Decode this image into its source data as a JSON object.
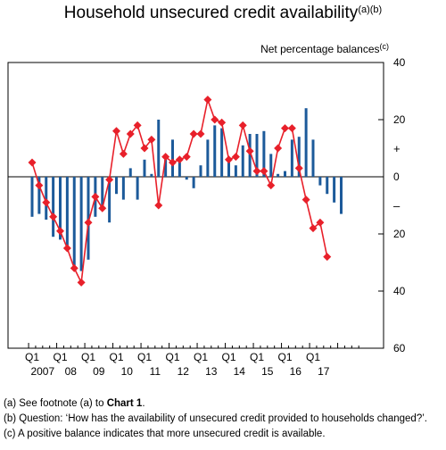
{
  "chart_data": {
    "type": "bar+line",
    "title": "Household unsecured credit availability",
    "title_note": "(a)(b)",
    "ylabel": "Net percentage balances",
    "ylabel_note": "(c)",
    "ylim": [
      -60,
      40
    ],
    "yticks": [
      {
        "value": 40,
        "label": "40"
      },
      {
        "value": 20,
        "label": "20"
      },
      {
        "value": 0,
        "label": "0"
      },
      {
        "value": -20,
        "label": "20"
      },
      {
        "value": -40,
        "label": "40"
      },
      {
        "value": -60,
        "label": "60"
      }
    ],
    "sign_labels": {
      "plus": "+",
      "minus": "–"
    },
    "quarters_start": "2007 Q1",
    "year_labels": [
      "2007",
      "08",
      "09",
      "10",
      "11",
      "12",
      "13",
      "14",
      "15",
      "16",
      "17"
    ],
    "q1_label": "Q1",
    "q1_years": [
      "2007",
      "08",
      "09",
      "10",
      "11",
      "12",
      "13",
      "14",
      "15",
      "16",
      "17"
    ],
    "series": [
      {
        "kind": "bar",
        "color": "#1c5a9a",
        "values": [
          -14,
          -13,
          -15,
          -21,
          -22,
          -25,
          -31,
          -33,
          -29,
          -14,
          -11,
          -16,
          -6,
          -8,
          3,
          -8,
          6,
          1,
          20,
          6,
          13,
          5,
          -1,
          -4,
          4,
          13,
          18,
          17,
          7,
          4,
          11,
          15,
          15,
          16,
          8,
          1,
          2,
          13,
          14,
          24,
          13,
          -3,
          -6,
          -9,
          -13
        ]
      },
      {
        "kind": "line",
        "marker": "diamond",
        "color": "#e8202a",
        "values": [
          5,
          -3,
          -9,
          -14,
          -19,
          -25,
          -32,
          -37,
          -16,
          -7,
          -11,
          -1,
          16,
          8,
          15,
          18,
          10,
          13,
          -10,
          7,
          5,
          6,
          7,
          15,
          15,
          27,
          20,
          19,
          6,
          7,
          18,
          9,
          2,
          2,
          -3,
          10,
          17,
          17,
          3,
          -8,
          -18,
          -16,
          -28
        ]
      }
    ]
  },
  "footnotes": {
    "a_prefix": "(a)  See footnote (a) to ",
    "a_bold": "Chart 1",
    "a_suffix": ".",
    "b": "(b)  Question:  ‘How has the availability of unsecured credit provided to households changed?’.",
    "c": "(c)  A positive balance indicates that more unsecured credit is available."
  }
}
